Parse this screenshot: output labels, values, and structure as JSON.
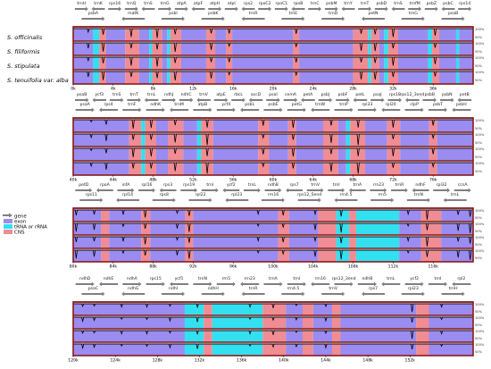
{
  "chart_data": {
    "type": "area",
    "colors": {
      "gene_arrow": "#808080",
      "exon": "#9a8cf0",
      "trna": "#33e0f0",
      "cns": "#f08c94",
      "border": "#8b1a1a",
      "trace": "#000000"
    },
    "legend": [
      "gene",
      "exon",
      "tRNA or rRNA",
      "CNS"
    ],
    "species": [
      "S. officinalis",
      "S. filiformis",
      "S. stipulata",
      "S. tenuifolia var. alba"
    ],
    "y_tick_labels": [
      "100%",
      "50%"
    ],
    "panels": [
      {
        "x_range": [
          0,
          40000
        ],
        "x_ticks": [
          "0k",
          "4k",
          "8k",
          "12k",
          "16k",
          "20k",
          "24k",
          "28k",
          "32k",
          "36k"
        ],
        "genes_upper": [
          "trnH",
          "trnK",
          "rps16",
          "trnQ",
          "trnS",
          "trnG",
          "atpA",
          "atpF",
          "atpH",
          "atpI",
          "rps2",
          "rpoC2",
          "rpoC1",
          "rpoB",
          "trnC",
          "psbM",
          "trnY",
          "trnT",
          "psbD",
          "trnS",
          "trnfM",
          "psbZ",
          "psbC",
          "rps14"
        ],
        "genes_lower": [
          "psbA",
          "matK",
          "psbI",
          "psbK",
          "trnR",
          "trnE",
          "trnD",
          "petN",
          "trnG",
          "psaB"
        ],
        "regions": [
          {
            "type": "exon",
            "start": 0,
            "end": 2000
          },
          {
            "type": "trna",
            "start": 2000,
            "end": 2600
          },
          {
            "type": "cns",
            "start": 2600,
            "end": 3300
          },
          {
            "type": "exon",
            "start": 3300,
            "end": 5200
          },
          {
            "type": "cns",
            "start": 5200,
            "end": 6600
          },
          {
            "type": "exon",
            "start": 6600,
            "end": 7600
          },
          {
            "type": "trna",
            "start": 7600,
            "end": 7900
          },
          {
            "type": "cns",
            "start": 7900,
            "end": 8900
          },
          {
            "type": "exon",
            "start": 8900,
            "end": 9400
          },
          {
            "type": "trna",
            "start": 9400,
            "end": 9700
          },
          {
            "type": "cns",
            "start": 9700,
            "end": 10800
          },
          {
            "type": "exon",
            "start": 10800,
            "end": 13300
          },
          {
            "type": "cns",
            "start": 13300,
            "end": 14200
          },
          {
            "type": "exon",
            "start": 14200,
            "end": 15300
          },
          {
            "type": "cns",
            "start": 15300,
            "end": 15900
          },
          {
            "type": "exon",
            "start": 15900,
            "end": 22000
          },
          {
            "type": "cns",
            "start": 22000,
            "end": 22600
          },
          {
            "type": "exon",
            "start": 22600,
            "end": 28000
          },
          {
            "type": "cns",
            "start": 28000,
            "end": 29500
          },
          {
            "type": "trna",
            "start": 29500,
            "end": 29800
          },
          {
            "type": "cns",
            "start": 29800,
            "end": 30600
          },
          {
            "type": "exon",
            "start": 30600,
            "end": 31100
          },
          {
            "type": "trna",
            "start": 31100,
            "end": 31500
          },
          {
            "type": "cns",
            "start": 31500,
            "end": 32500
          },
          {
            "type": "exon",
            "start": 32500,
            "end": 35500
          },
          {
            "type": "trna",
            "start": 35500,
            "end": 35900
          },
          {
            "type": "cns",
            "start": 35900,
            "end": 36600
          },
          {
            "type": "exon",
            "start": 36600,
            "end": 38300
          },
          {
            "type": "trna",
            "start": 38300,
            "end": 38600
          },
          {
            "type": "exon",
            "start": 38600,
            "end": 40000
          }
        ],
        "dips": [
          {
            "x": 1500,
            "depth": 0.55
          },
          {
            "x": 3000,
            "depth": 0.75
          },
          {
            "x": 5800,
            "depth": 0.85
          },
          {
            "x": 8400,
            "depth": 0.8
          },
          {
            "x": 10200,
            "depth": 0.9
          },
          {
            "x": 13800,
            "depth": 0.6
          },
          {
            "x": 15600,
            "depth": 0.5
          },
          {
            "x": 22300,
            "depth": 0.45
          },
          {
            "x": 28800,
            "depth": 0.8
          },
          {
            "x": 30200,
            "depth": 0.7
          },
          {
            "x": 32000,
            "depth": 0.85
          },
          {
            "x": 36200,
            "depth": 0.6
          }
        ]
      },
      {
        "x_range": [
          40000,
          80000
        ],
        "x_ticks": [
          "40k",
          "44k",
          "48k",
          "52k",
          "56k",
          "60k",
          "64k",
          "68k",
          "72k",
          "76k"
        ],
        "genes_upper": [
          "psaB",
          "ycf3",
          "trnS",
          "trnT",
          "trnL",
          "ndhJ",
          "ndhC",
          "trnV",
          "atpE",
          "rbcL",
          "accD",
          "psaI",
          "cemA",
          "petA",
          "psbJ",
          "psbF",
          "petL",
          "psaJ",
          "rps18",
          "rps12_3end",
          "psbB",
          "psbN",
          "petB"
        ],
        "genes_lower": [
          "psaA",
          "rps4",
          "trnF",
          "ndhK",
          "trnM",
          "atpB",
          "ycf4",
          "psbL",
          "psbE",
          "petG",
          "trnW",
          "trnP",
          "rpl33",
          "rpl20",
          "clpP",
          "psbT",
          "psbH"
        ],
        "regions": [
          {
            "type": "exon",
            "start": 40000,
            "end": 45600
          },
          {
            "type": "cns",
            "start": 45600,
            "end": 46800
          },
          {
            "type": "trna",
            "start": 46800,
            "end": 47200
          },
          {
            "type": "cns",
            "start": 47200,
            "end": 48300
          },
          {
            "type": "exon",
            "start": 48300,
            "end": 49500
          },
          {
            "type": "cns",
            "start": 49500,
            "end": 51000
          },
          {
            "type": "exon",
            "start": 51000,
            "end": 52400
          },
          {
            "type": "trna",
            "start": 52400,
            "end": 52800
          },
          {
            "type": "cns",
            "start": 52800,
            "end": 54000
          },
          {
            "type": "exon",
            "start": 54000,
            "end": 58500
          },
          {
            "type": "cns",
            "start": 58500,
            "end": 59600
          },
          {
            "type": "exon",
            "start": 59600,
            "end": 61500
          },
          {
            "type": "cns",
            "start": 61500,
            "end": 62300
          },
          {
            "type": "exon",
            "start": 62300,
            "end": 65000
          },
          {
            "type": "cns",
            "start": 65000,
            "end": 66500
          },
          {
            "type": "exon",
            "start": 66500,
            "end": 67300
          },
          {
            "type": "trna",
            "start": 67300,
            "end": 67700
          },
          {
            "type": "cns",
            "start": 67700,
            "end": 69200
          },
          {
            "type": "exon",
            "start": 69200,
            "end": 71400
          },
          {
            "type": "cns",
            "start": 71400,
            "end": 72700
          },
          {
            "type": "exon",
            "start": 72700,
            "end": 75600
          },
          {
            "type": "cns",
            "start": 75600,
            "end": 76400
          },
          {
            "type": "exon",
            "start": 76400,
            "end": 80000
          }
        ],
        "dips": [
          {
            "x": 41800,
            "depth": 0.35
          },
          {
            "x": 43300,
            "depth": 0.6
          },
          {
            "x": 46000,
            "depth": 0.9
          },
          {
            "x": 47800,
            "depth": 0.7
          },
          {
            "x": 50200,
            "depth": 0.85
          },
          {
            "x": 53400,
            "depth": 0.95
          },
          {
            "x": 59000,
            "depth": 0.6
          },
          {
            "x": 62000,
            "depth": 0.7
          },
          {
            "x": 65800,
            "depth": 0.9
          },
          {
            "x": 68500,
            "depth": 0.95
          },
          {
            "x": 72000,
            "depth": 0.8
          },
          {
            "x": 76000,
            "depth": 0.5
          }
        ]
      },
      {
        "x_range": [
          80000,
          120000
        ],
        "x_ticks": [
          "80k",
          "84k",
          "88k",
          "92k",
          "96k",
          "100k",
          "104k",
          "108k",
          "112k",
          "116k"
        ],
        "genes_upper": [
          "petD",
          "rpoA",
          "infA",
          "rpl16",
          "rps3",
          "rps19",
          "trnI",
          "ycf2",
          "trnL",
          "ndhB",
          "rps7",
          "trnV",
          "trnI",
          "trnA",
          "rrn23",
          "trnR",
          "ndhF",
          "rpl32",
          "ccsA"
        ],
        "genes_lower": [
          "rps11",
          "rpl14",
          "rps8",
          "rpl22",
          "rpl23",
          "rrn16",
          "rps12_5end",
          "rrn4.5",
          "rrn5",
          "trnN",
          "trnL"
        ],
        "regions": [
          {
            "type": "exon",
            "start": 80000,
            "end": 82800
          },
          {
            "type": "cns",
            "start": 82800,
            "end": 83600
          },
          {
            "type": "exon",
            "start": 83600,
            "end": 86800
          },
          {
            "type": "cns",
            "start": 86800,
            "end": 87700
          },
          {
            "type": "exon",
            "start": 87700,
            "end": 91200
          },
          {
            "type": "cns",
            "start": 91200,
            "end": 92000
          },
          {
            "type": "exon",
            "start": 92000,
            "end": 100500
          },
          {
            "type": "cns",
            "start": 100500,
            "end": 101600
          },
          {
            "type": "exon",
            "start": 101600,
            "end": 104500
          },
          {
            "type": "cns",
            "start": 104500,
            "end": 106300
          },
          {
            "type": "trna",
            "start": 106300,
            "end": 107600
          },
          {
            "type": "cns",
            "start": 107600,
            "end": 108300
          },
          {
            "type": "trna",
            "start": 108300,
            "end": 112600
          },
          {
            "type": "exon",
            "start": 112600,
            "end": 114800
          },
          {
            "type": "cns",
            "start": 114800,
            "end": 116800
          },
          {
            "type": "exon",
            "start": 116800,
            "end": 120000
          }
        ],
        "dips": [
          {
            "x": 80300,
            "depth": 0.9
          },
          {
            "x": 82100,
            "depth": 0.6
          },
          {
            "x": 85000,
            "depth": 0.5
          },
          {
            "x": 87200,
            "depth": 0.7
          },
          {
            "x": 90400,
            "depth": 0.55
          },
          {
            "x": 91600,
            "depth": 0.8
          },
          {
            "x": 98500,
            "depth": 0.45
          },
          {
            "x": 101000,
            "depth": 0.5
          },
          {
            "x": 104200,
            "depth": 0.7
          },
          {
            "x": 106800,
            "depth": 0.85
          },
          {
            "x": 113500,
            "depth": 0.45
          },
          {
            "x": 115400,
            "depth": 0.9
          },
          {
            "x": 118500,
            "depth": 0.8
          },
          {
            "x": 119700,
            "depth": 0.9
          }
        ]
      },
      {
        "x_range": [
          120000,
          158000
        ],
        "x_ticks": [
          "120k",
          "124k",
          "128k",
          "132k",
          "136k",
          "140k",
          "144k",
          "148k",
          "152k"
        ],
        "genes_upper": [
          "ndhD",
          "ndhE",
          "ndhA",
          "rps15",
          "ycf1",
          "trnN",
          "rrn5",
          "rrn23",
          "trnA",
          "trnI",
          "rrn16",
          "rps12_3end",
          "ndhB",
          "trnL",
          "ycf2",
          "trnI",
          "rpl2"
        ],
        "genes_lower": [
          "psaC",
          "ndhG",
          "ndhI",
          "ndhH",
          "trnR",
          "rrn4.5",
          "trnV",
          "rps7",
          "rpl23",
          "trnH"
        ],
        "regions": [
          {
            "type": "exon",
            "start": 120000,
            "end": 130600
          },
          {
            "type": "trna",
            "start": 130600,
            "end": 132400
          },
          {
            "type": "cns",
            "start": 132400,
            "end": 133200
          },
          {
            "type": "trna",
            "start": 133200,
            "end": 138000
          },
          {
            "type": "cns",
            "start": 138000,
            "end": 140200
          },
          {
            "type": "exon",
            "start": 140200,
            "end": 141800
          },
          {
            "type": "cns",
            "start": 141800,
            "end": 142800
          },
          {
            "type": "exon",
            "start": 142800,
            "end": 144600
          },
          {
            "type": "cns",
            "start": 144600,
            "end": 145400
          },
          {
            "type": "exon",
            "start": 145400,
            "end": 152600
          },
          {
            "type": "cns",
            "start": 152600,
            "end": 153800
          },
          {
            "type": "exon",
            "start": 153800,
            "end": 158000
          }
        ],
        "dips": [
          {
            "x": 120900,
            "depth": 0.45
          },
          {
            "x": 122000,
            "depth": 0.3
          },
          {
            "x": 124600,
            "depth": 0.35
          },
          {
            "x": 127000,
            "depth": 0.3
          },
          {
            "x": 129200,
            "depth": 0.4
          },
          {
            "x": 131800,
            "depth": 0.45
          },
          {
            "x": 136800,
            "depth": 0.35
          },
          {
            "x": 139000,
            "depth": 0.4
          },
          {
            "x": 141200,
            "depth": 0.3
          },
          {
            "x": 144000,
            "depth": 0.35
          },
          {
            "x": 152200,
            "depth": 0.9
          },
          {
            "x": 155000,
            "depth": 0.3
          }
        ]
      }
    ]
  }
}
